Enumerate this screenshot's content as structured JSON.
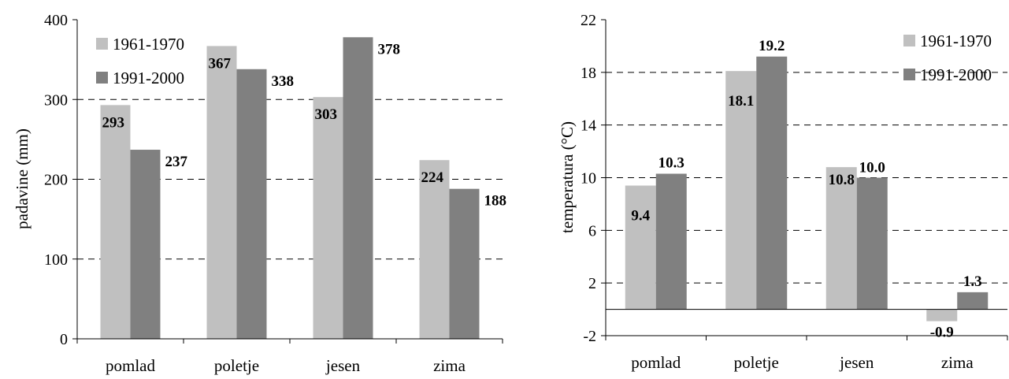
{
  "chart_data": [
    {
      "type": "bar",
      "categories": [
        "pomlad",
        "poletje",
        "jesen",
        "zima"
      ],
      "series": [
        {
          "name": "1961-1970",
          "values": [
            293,
            367,
            303,
            224
          ],
          "labels": [
            "293",
            "367",
            "303",
            "224"
          ],
          "color": "#c0c0c0"
        },
        {
          "name": "1991-2000",
          "values": [
            237,
            338,
            378,
            188
          ],
          "labels": [
            "237",
            "338",
            "378",
            "188"
          ],
          "color": "#808080"
        }
      ],
      "ylabel": "padavine (mm)",
      "ylim": [
        0,
        400
      ],
      "yticks": [
        "0",
        "100",
        "200",
        "300",
        "400"
      ],
      "grid": true,
      "legend": "top-left"
    },
    {
      "type": "bar",
      "categories": [
        "pomlad",
        "poletje",
        "jesen",
        "zima"
      ],
      "series": [
        {
          "name": "1961-1970",
          "values": [
            9.4,
            18.1,
            10.8,
            -0.9
          ],
          "labels": [
            "9.4",
            "18.1",
            "10.8",
            "-0.9"
          ],
          "color": "#c0c0c0"
        },
        {
          "name": "1991-2000",
          "values": [
            10.3,
            19.2,
            10.0,
            1.3
          ],
          "labels": [
            "10.3",
            "19.2",
            "10.0",
            "1.3"
          ],
          "color": "#808080"
        }
      ],
      "ylabel": "temperatura (°C)",
      "ylim": [
        -2,
        22
      ],
      "yticks": [
        "-2",
        "2",
        "6",
        "10",
        "14",
        "18",
        "22"
      ],
      "grid": true,
      "legend": "top-right"
    }
  ]
}
